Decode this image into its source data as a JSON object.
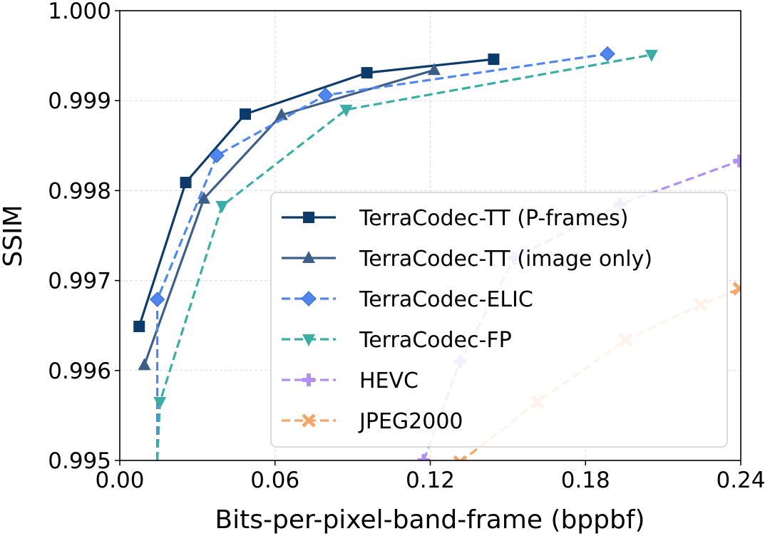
{
  "chart_data": {
    "type": "line",
    "title": "",
    "xlabel": "Bits-per-pixel-band-frame (bppbf)",
    "ylabel": "SSIM",
    "xlim": [
      0.0,
      0.24
    ],
    "ylim": [
      0.995,
      1.0
    ],
    "grid": true,
    "legend_position": "center-right",
    "xticks": [
      "0.00",
      "0.06",
      "0.12",
      "0.18",
      "0.24"
    ],
    "yticks": [
      "0.995",
      "0.996",
      "0.997",
      "0.998",
      "0.999",
      "1.000"
    ],
    "series": [
      {
        "name": "TerraCodec-TT (P-frames)",
        "color": "#0b3a6b",
        "dash": "solid",
        "marker": "square",
        "x": [
          0.0075,
          0.0255,
          0.0485,
          0.0955,
          0.1445
        ],
        "y": [
          0.99649,
          0.99809,
          0.99885,
          0.99931,
          0.99946
        ]
      },
      {
        "name": "TerraCodec-TT (image only)",
        "color": "#3d5f87",
        "dash": "solid",
        "marker": "triangle-up",
        "x": [
          0.0095,
          0.0325,
          0.0625,
          0.1215
        ],
        "y": [
          0.99606,
          0.99791,
          0.99884,
          0.99934
        ]
      },
      {
        "name": "TerraCodec-ELIC",
        "color": "#4f86f0",
        "dash": "dashed",
        "marker": "diamond",
        "x": [
          0.0145,
          0.0145,
          0.0375,
          0.0795,
          0.1885
        ],
        "y": [
          0.995,
          0.99679,
          0.99839,
          0.99906,
          0.99952
        ]
      },
      {
        "name": "TerraCodec-FP",
        "color": "#3aaea5",
        "dash": "dashed",
        "marker": "triangle-down",
        "x": [
          0.0145,
          0.0155,
          0.0395,
          0.0875,
          0.2055
        ],
        "y": [
          0.995,
          0.99565,
          0.99783,
          0.9989,
          0.99951
        ]
      },
      {
        "name": "HEVC",
        "color": "#b28ff3",
        "dash": "dashed",
        "marker": "plus",
        "x": [
          0.1175,
          0.1315,
          0.1525,
          0.1935,
          0.2395
        ],
        "y": [
          0.995,
          0.9961,
          0.99725,
          0.99785,
          0.99833
        ]
      },
      {
        "name": "JPEG2000",
        "color": "#f5a76a",
        "dash": "dashed",
        "marker": "x",
        "x": [
          0.1315,
          0.1615,
          0.1955,
          0.2245,
          0.2395
        ],
        "y": [
          0.99498,
          0.99565,
          0.99634,
          0.99673,
          0.99691
        ]
      }
    ]
  }
}
